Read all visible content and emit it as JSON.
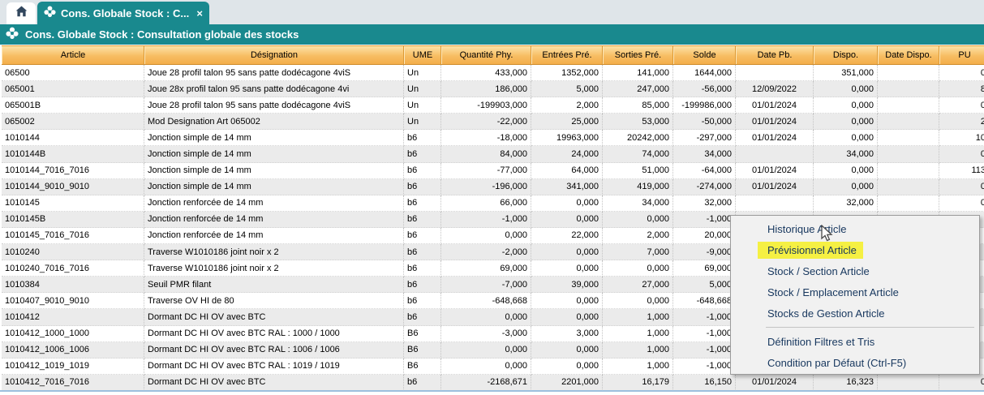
{
  "colors": {
    "teal": "#19898e",
    "tabbar_bg": "#dfe5e9",
    "header_orange_top": "#fde2a7",
    "header_orange_bottom": "#f3ae4b",
    "row_alt": "#ebebeb",
    "menu_text": "#17375e",
    "menu_highlight_yellow": "#f5f043",
    "bottom_line_blue": "#9dc0de"
  },
  "tabs": {
    "home_icon": "home-icon",
    "active_tab": {
      "label": "Cons. Globale Stock : C...",
      "close_glyph": "×",
      "icon": "stock-flower-icon"
    }
  },
  "title_bar": {
    "icon": "stock-flower-icon",
    "title": "Cons. Globale Stock : Consultation globale des stocks"
  },
  "table": {
    "columns": [
      "Article",
      "Désignation",
      "UME",
      "Quantité Phy.",
      "Entrées Pré.",
      "Sorties Pré.",
      "Solde",
      "Date Pb.",
      "Dispo.",
      "Date Dispo.",
      "PU"
    ],
    "rows": [
      [
        "06500",
        "Joue 28 profil talon 95 sans patte dodécagone 4viS",
        "Un",
        "433,000",
        "1352,000",
        "141,000",
        "1644,000",
        "",
        "351,000",
        "",
        "0"
      ],
      [
        "065001",
        "Joue 28x profil talon 95 sans patte dodécagone 4vi",
        "Un",
        "186,000",
        "5,000",
        "247,000",
        "-56,000",
        "12/09/2022",
        "0,000",
        "",
        "8"
      ],
      [
        "065001B",
        "Joue 28 profil talon 95 sans patte dodécagone 4viS",
        "Un",
        "-199903,000",
        "2,000",
        "85,000",
        "-199986,000",
        "01/01/2024",
        "0,000",
        "",
        "0"
      ],
      [
        "065002",
        "Mod Designation Art 065002",
        "Un",
        "-22,000",
        "25,000",
        "53,000",
        "-50,000",
        "01/01/2024",
        "0,000",
        "",
        "2"
      ],
      [
        "1010144",
        "Jonction simple de 14 mm",
        "b6",
        "-18,000",
        "19963,000",
        "20242,000",
        "-297,000",
        "01/01/2024",
        "0,000",
        "",
        "10"
      ],
      [
        "1010144B",
        "Jonction simple de 14 mm",
        "b6",
        "84,000",
        "24,000",
        "74,000",
        "34,000",
        "",
        "34,000",
        "",
        "0"
      ],
      [
        "1010144_7016_7016",
        "Jonction simple de 14 mm",
        "b6",
        "-77,000",
        "64,000",
        "51,000",
        "-64,000",
        "01/01/2024",
        "0,000",
        "",
        "113"
      ],
      [
        "1010144_9010_9010",
        "Jonction simple de 14 mm",
        "b6",
        "-196,000",
        "341,000",
        "419,000",
        "-274,000",
        "01/01/2024",
        "0,000",
        "",
        "0"
      ],
      [
        "1010145",
        "Jonction renforcée de 14 mm",
        "b6",
        "66,000",
        "0,000",
        "34,000",
        "32,000",
        "",
        "32,000",
        "",
        "0"
      ],
      [
        "1010145B",
        "Jonction renforcée de 14 mm",
        "b6",
        "-1,000",
        "0,000",
        "0,000",
        "-1,000",
        "",
        "",
        "",
        ""
      ],
      [
        "1010145_7016_7016",
        "Jonction renforcée de 14 mm",
        "b6",
        "0,000",
        "22,000",
        "2,000",
        "20,000",
        "",
        "",
        "",
        ""
      ],
      [
        "1010240",
        "Traverse W1010186 joint noir x 2",
        "b6",
        "-2,000",
        "0,000",
        "7,000",
        "-9,000",
        "",
        "",
        "",
        ""
      ],
      [
        "1010240_7016_7016",
        "Traverse W1010186 joint noir x 2",
        "b6",
        "69,000",
        "0,000",
        "0,000",
        "69,000",
        "",
        "",
        "",
        ""
      ],
      [
        "1010384",
        "Seuil PMR filant",
        "b6",
        "-7,000",
        "39,000",
        "27,000",
        "5,000",
        "",
        "",
        "",
        ""
      ],
      [
        "1010407_9010_9010",
        "Traverse OV HI de 80",
        "b6",
        "-648,668",
        "0,000",
        "0,000",
        "-648,668",
        "",
        "",
        "",
        ""
      ],
      [
        "1010412",
        "Dormant DC HI OV avec BTC",
        "b6",
        "0,000",
        "0,000",
        "1,000",
        "-1,000",
        "",
        "",
        "",
        ""
      ],
      [
        "1010412_1000_1000",
        "Dormant DC HI OV avec BTC RAL : 1000 / 1000",
        "B6",
        "-3,000",
        "3,000",
        "1,000",
        "-1,000",
        "",
        "",
        "",
        ""
      ],
      [
        "1010412_1006_1006",
        "Dormant DC HI OV avec BTC RAL : 1006 / 1006",
        "B6",
        "0,000",
        "0,000",
        "1,000",
        "-1,000",
        "",
        "",
        "",
        ""
      ],
      [
        "1010412_1019_1019",
        "Dormant DC HI OV avec BTC RAL : 1019 / 1019",
        "B6",
        "0,000",
        "0,000",
        "1,000",
        "-1,000",
        "",
        "",
        "",
        ""
      ],
      [
        "1010412_7016_7016",
        "Dormant DC HI OV avec BTC",
        "b6",
        "-2168,671",
        "2201,000",
        "16,179",
        "16,150",
        "01/01/2024",
        "16,323",
        "",
        "0"
      ]
    ]
  },
  "context_menu": {
    "items": [
      {
        "label": "Historique Article",
        "highlighted": false
      },
      {
        "label": "Prévisionnel Article",
        "highlighted": true
      },
      {
        "label": "Stock / Section Article",
        "highlighted": false
      },
      {
        "label": "Stock / Emplacement Article",
        "highlighted": false
      },
      {
        "label": "Stocks de Gestion Article",
        "highlighted": false
      },
      {
        "separator": true
      },
      {
        "label": "Définition Filtres et Tris",
        "highlighted": false
      },
      {
        "label": "Condition par Défaut (Ctrl-F5)",
        "highlighted": false
      }
    ]
  }
}
